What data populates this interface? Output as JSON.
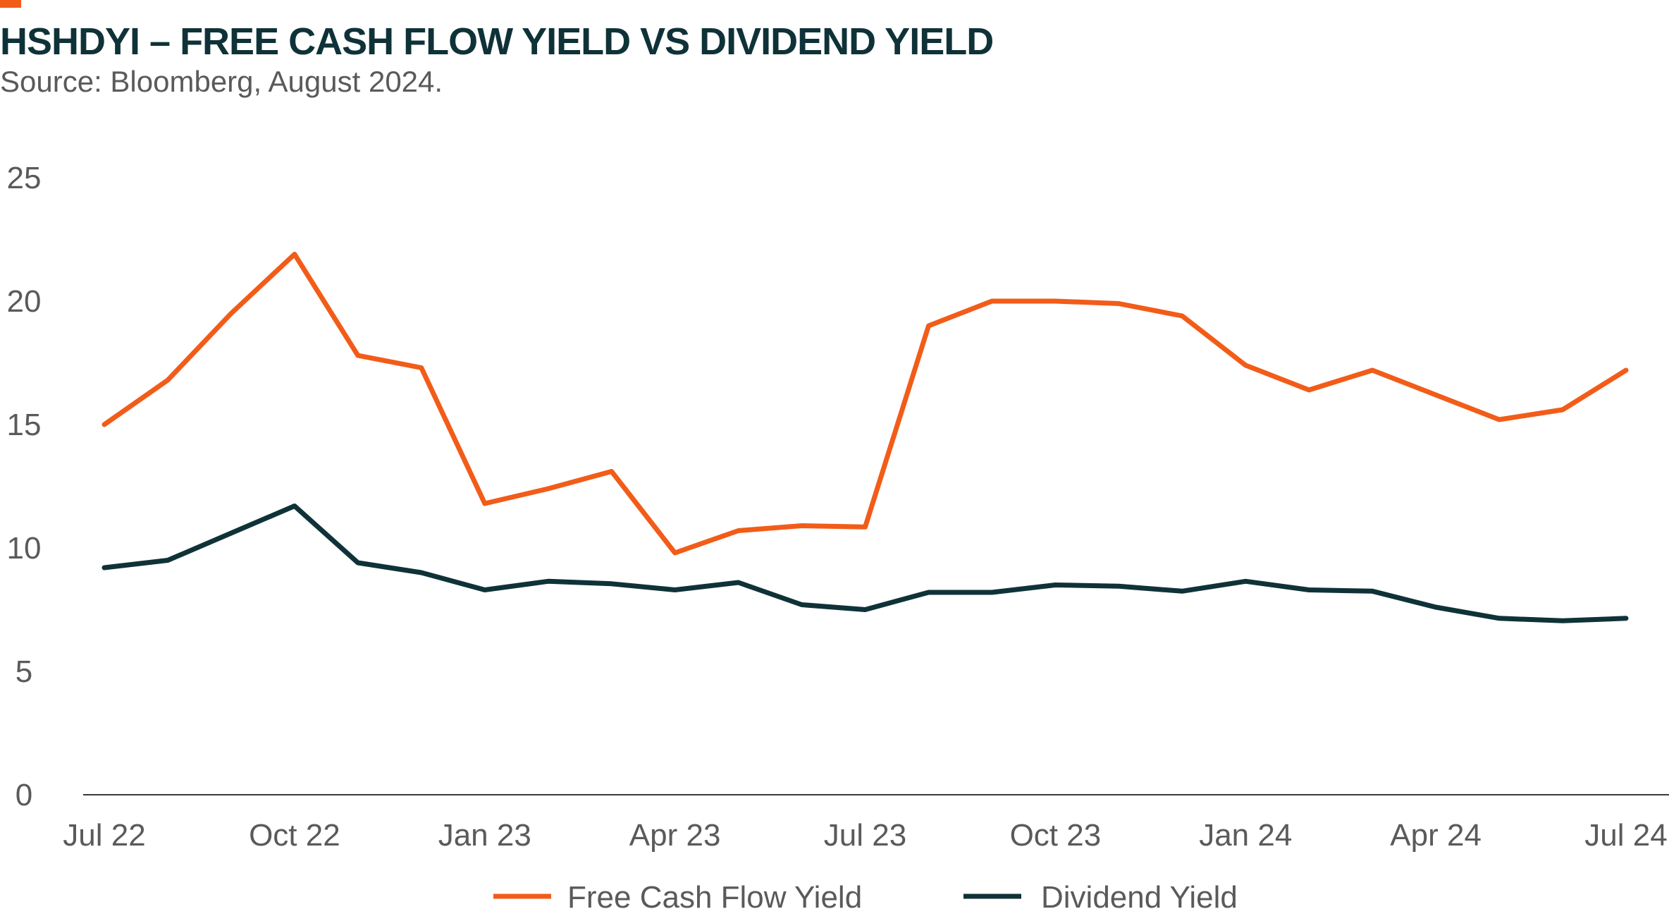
{
  "header": {
    "title": "HSHDYI – FREE CASH FLOW YIELD VS DIVIDEND YIELD",
    "subtitle": "Source: Bloomberg, August 2024."
  },
  "colors": {
    "accent": "#f25c19",
    "fcf": "#f25c19",
    "dividend": "#0f3238",
    "title": "#0f3238",
    "text": "#5a5a5a",
    "axis": "#3a3a3a"
  },
  "chart_data": {
    "type": "line",
    "x": [
      "2022-07",
      "2022-08",
      "2022-09",
      "2022-10",
      "2022-11",
      "2022-12",
      "2023-01",
      "2023-02",
      "2023-03",
      "2023-04",
      "2023-05",
      "2023-06",
      "2023-07",
      "2023-08",
      "2023-09",
      "2023-10",
      "2023-11",
      "2023-12",
      "2024-01",
      "2024-02",
      "2024-03",
      "2024-04",
      "2024-05",
      "2024-06",
      "2024-07"
    ],
    "series": [
      {
        "name": "Free Cash Flow Yield",
        "values": [
          15.0,
          16.8,
          19.5,
          21.9,
          17.8,
          17.3,
          11.8,
          12.4,
          13.1,
          9.8,
          10.7,
          10.9,
          10.85,
          19.0,
          20.0,
          20.0,
          19.9,
          19.4,
          17.4,
          16.4,
          17.2,
          16.2,
          15.2,
          15.6,
          17.2
        ]
      },
      {
        "name": "Dividend Yield",
        "values": [
          9.2,
          9.5,
          10.6,
          11.7,
          9.4,
          9.0,
          8.3,
          8.65,
          8.55,
          8.3,
          8.6,
          7.7,
          7.5,
          8.2,
          8.2,
          8.5,
          8.45,
          8.25,
          8.65,
          8.3,
          8.25,
          7.6,
          7.15,
          7.05,
          7.15
        ]
      }
    ],
    "x_tick_labels": [
      "Jul 22",
      "Oct 22",
      "Jan 23",
      "Apr 23",
      "Jul 23",
      "Oct 23",
      "Jan 24",
      "Apr 24",
      "Jul 24"
    ],
    "y_ticks": [
      0,
      5,
      10,
      15,
      20,
      25
    ],
    "ylim": [
      0,
      25
    ],
    "grid": false,
    "legend": "bottom-center",
    "title": "HSHDYI – FREE CASH FLOW YIELD VS DIVIDEND YIELD"
  }
}
